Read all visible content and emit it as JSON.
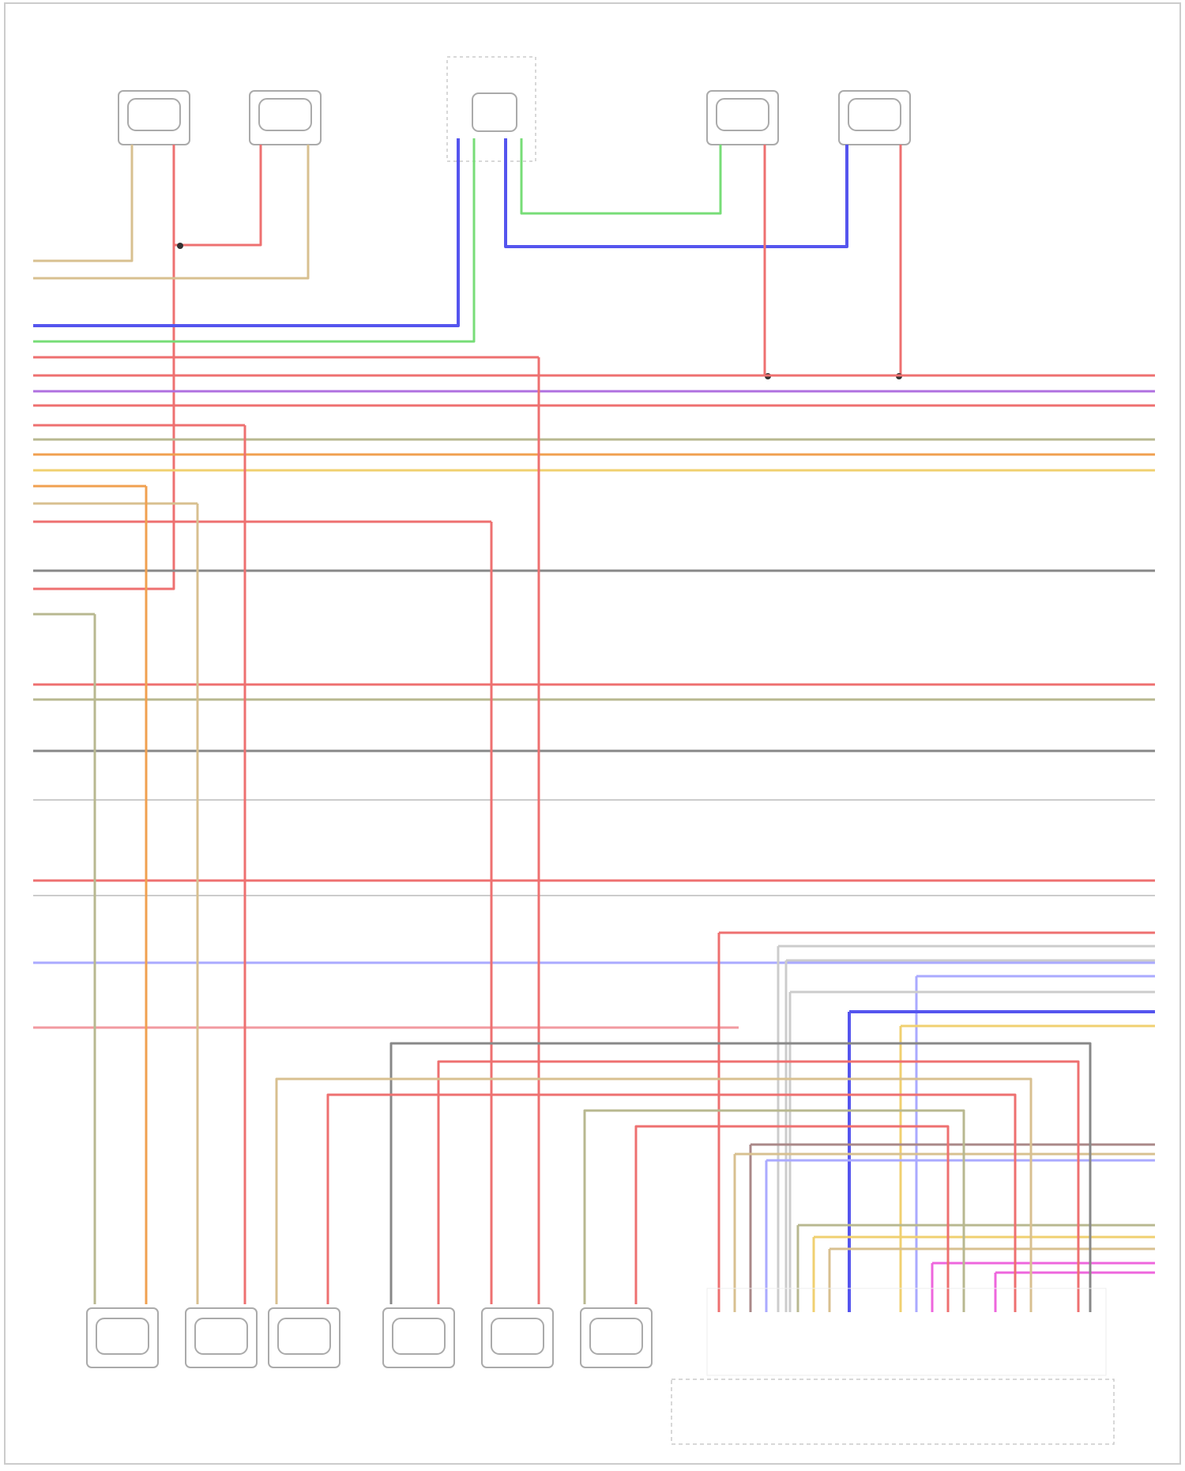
{
  "footer": {
    "source": ""
  },
  "colors": {
    "red": "#ee7070",
    "pink": "#f29aa0",
    "blue": "#5555ee",
    "green": "#77dd77",
    "violet": "#b070e0",
    "magenta": "#ee66dd",
    "yellow": "#f0d070",
    "orange": "#f0a050",
    "tan": "#d8c090",
    "gray": "#888888",
    "lightgray": "#cccccc",
    "olive": "#b8b890",
    "lavender": "#aaaaff",
    "brown": "#aa8888"
  },
  "top_components": [
    {
      "id": "c1",
      "label": "",
      "connector": ""
    },
    {
      "id": "c2",
      "label": "",
      "connector": ""
    },
    {
      "id": "c3",
      "label": "",
      "connector": ""
    },
    {
      "id": "c4",
      "label": "",
      "connector": ""
    },
    {
      "id": "c5",
      "label": "",
      "connector": ""
    }
  ],
  "bottom_components": [
    {
      "id": "b1",
      "label": "",
      "connector": ""
    },
    {
      "id": "b2",
      "label": "",
      "connector": ""
    },
    {
      "id": "b3",
      "label": "",
      "connector": ""
    },
    {
      "id": "b4",
      "label": "",
      "connector": ""
    },
    {
      "id": "b5",
      "label": "",
      "connector": ""
    },
    {
      "id": "b6",
      "label": "",
      "connector": ""
    }
  ],
  "group_labels": {
    "left_group": "",
    "right_group": "",
    "engine_module": ""
  }
}
